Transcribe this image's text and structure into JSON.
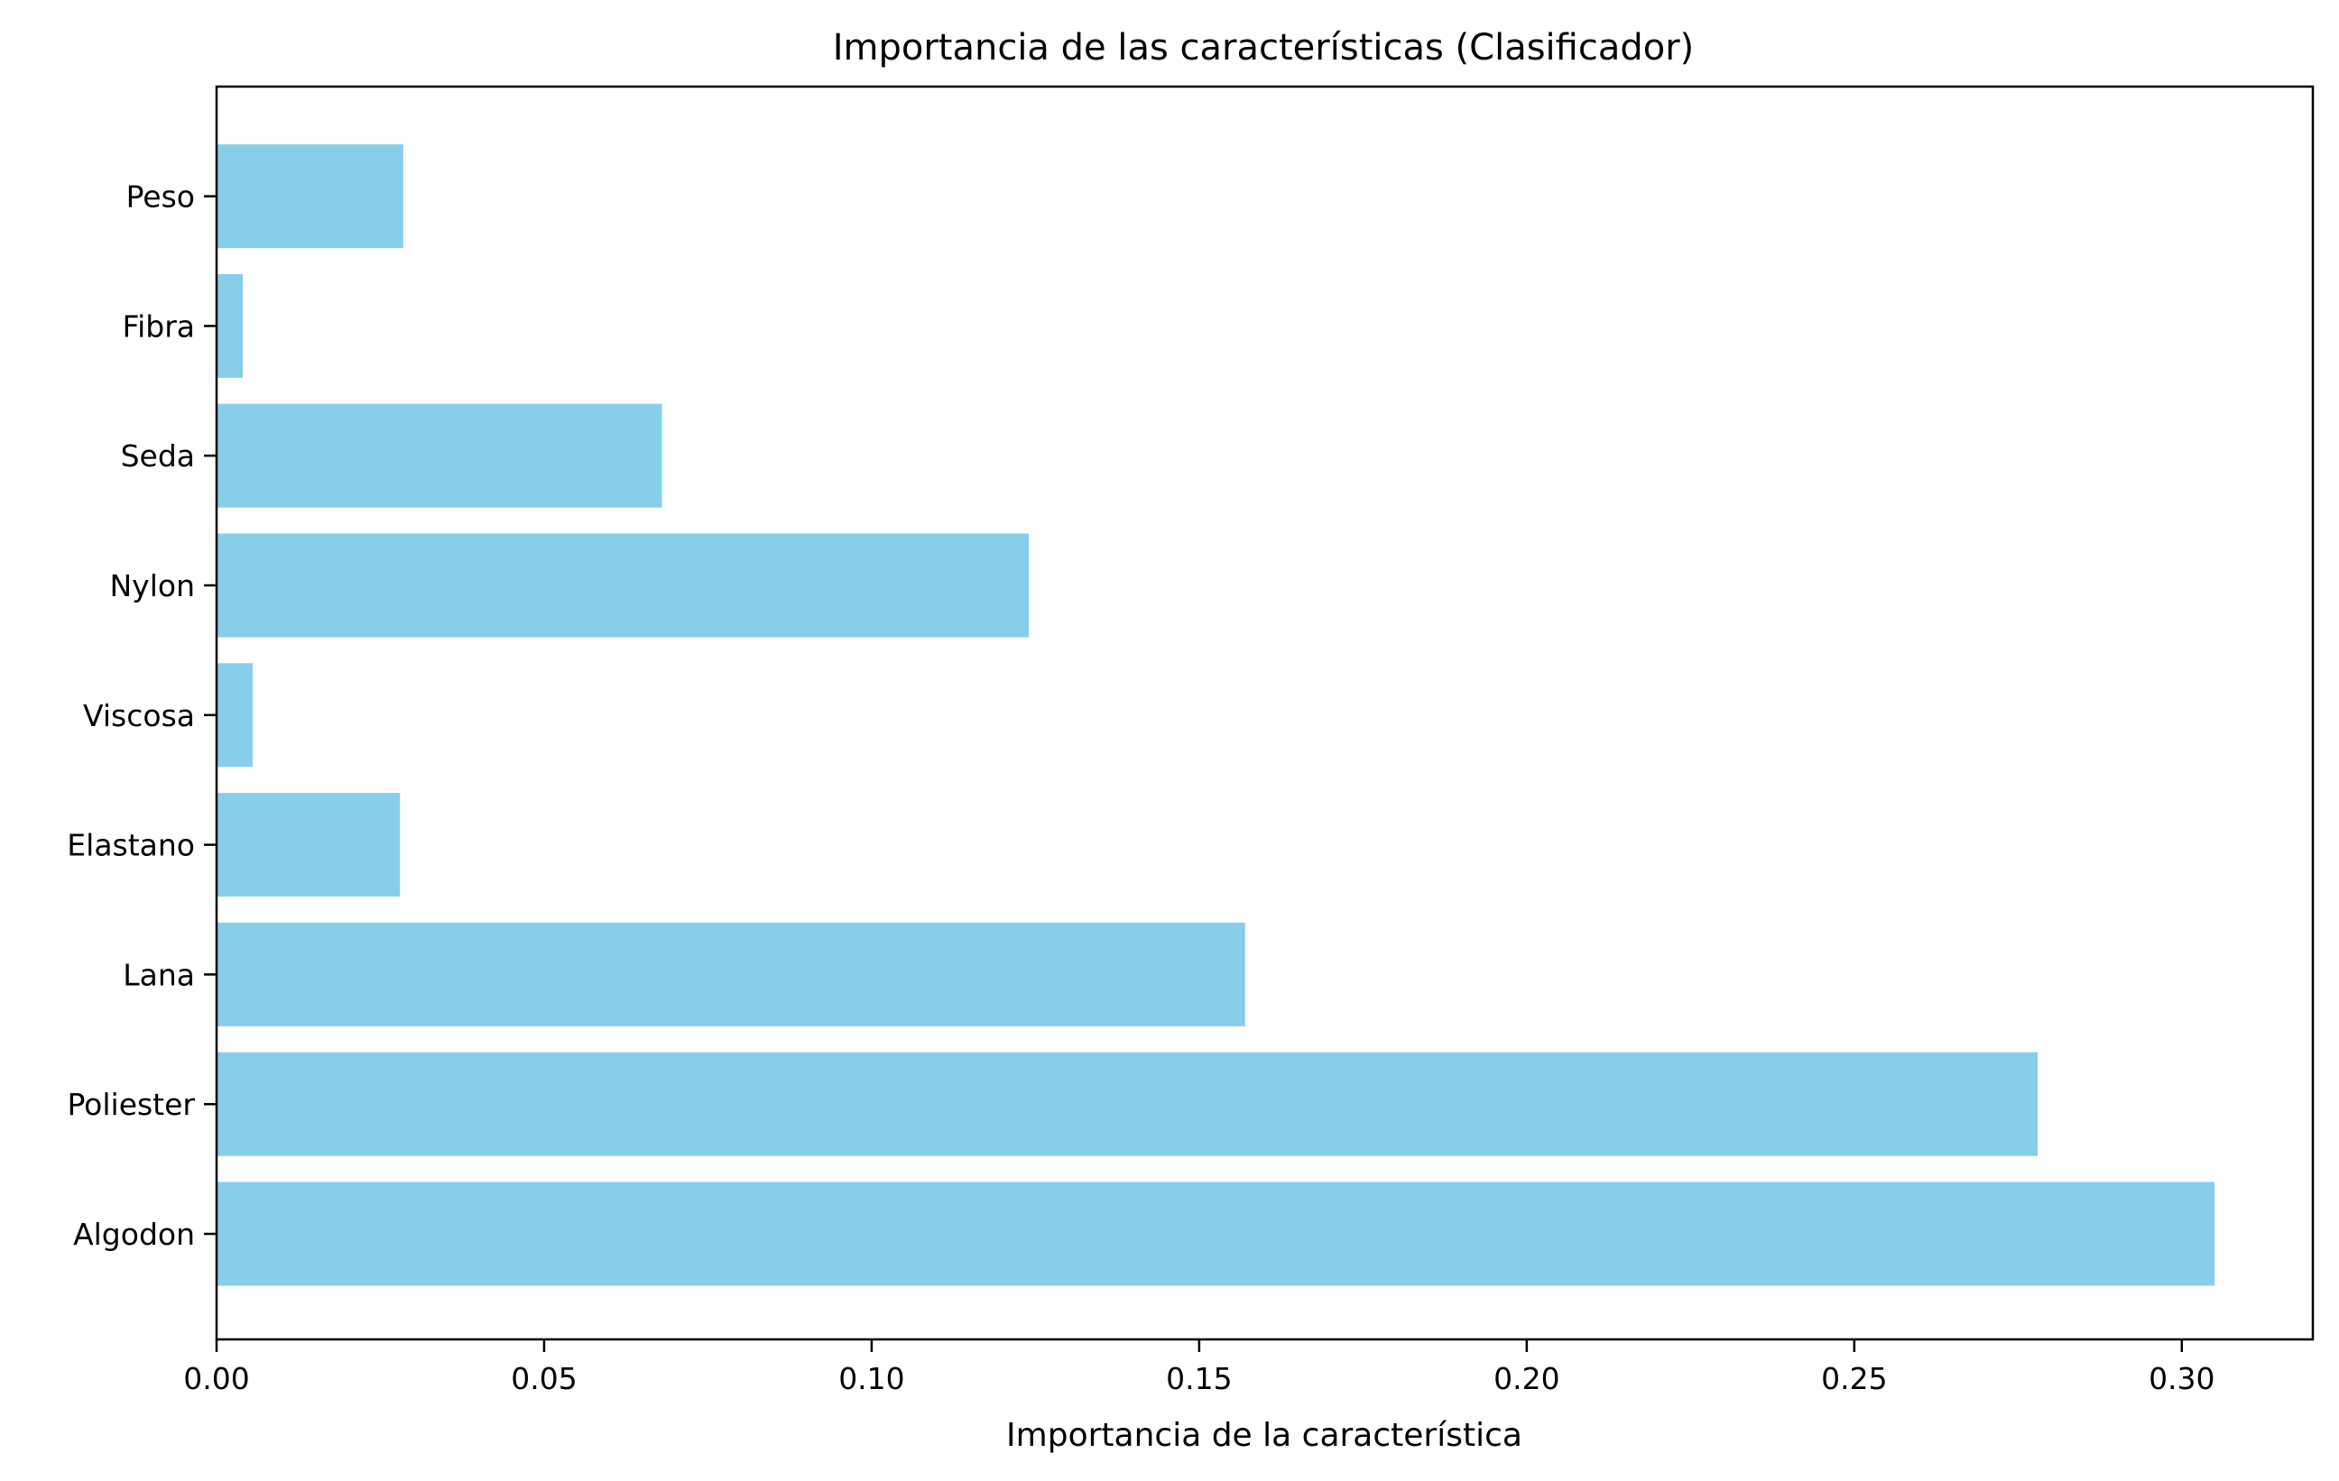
{
  "chart_data": {
    "type": "bar",
    "orientation": "horizontal",
    "title": "Importancia de las características (Clasificador)",
    "xlabel": "Importancia de la característica",
    "ylabel": "",
    "categories": [
      "Algodon",
      "Poliester",
      "Lana",
      "Elastano",
      "Viscosa",
      "Nylon",
      "Seda",
      "Fibra",
      "Peso"
    ],
    "values": [
      0.305,
      0.278,
      0.157,
      0.028,
      0.0055,
      0.124,
      0.068,
      0.004,
      0.0285
    ],
    "xlim": [
      0.0,
      0.32
    ],
    "xticks": [
      "0.00",
      "0.05",
      "0.10",
      "0.15",
      "0.20",
      "0.25",
      "0.30"
    ],
    "grid": false,
    "bar_color": "#87ceeb"
  }
}
